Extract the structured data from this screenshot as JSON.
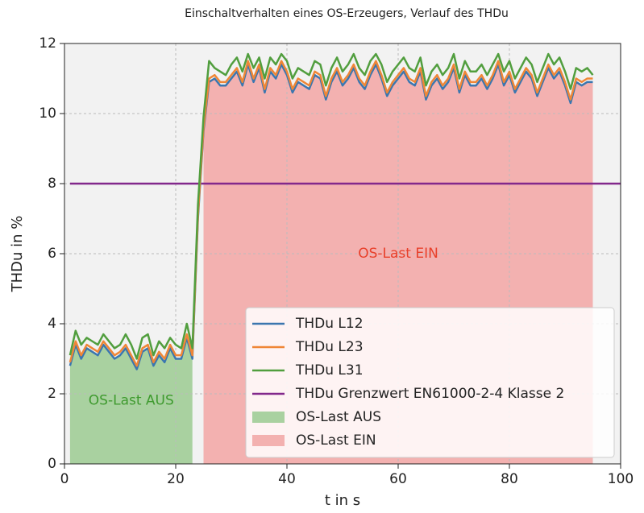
{
  "chart_data": {
    "type": "line",
    "title": "Einschaltverhalten eines OS-Erzeugers, Verlauf des THDu",
    "x_label": "t in s",
    "y_label": "THDu in %",
    "xlim": [
      0,
      100
    ],
    "ylim": [
      0,
      12
    ],
    "xticks": [
      0,
      20,
      40,
      60,
      80,
      100
    ],
    "yticks": [
      0,
      2,
      4,
      6,
      8,
      10,
      12
    ],
    "grid": true,
    "legend": "lower right",
    "x": [
      1,
      2,
      3,
      4,
      5,
      6,
      7,
      8,
      9,
      10,
      11,
      12,
      13,
      14,
      15,
      16,
      17,
      18,
      19,
      20,
      21,
      22,
      23,
      24,
      25,
      26,
      27,
      28,
      29,
      30,
      31,
      32,
      33,
      34,
      35,
      36,
      37,
      38,
      39,
      40,
      41,
      42,
      43,
      44,
      45,
      46,
      47,
      48,
      49,
      50,
      51,
      52,
      53,
      54,
      55,
      56,
      57,
      58,
      59,
      60,
      61,
      62,
      63,
      64,
      65,
      66,
      67,
      68,
      69,
      70,
      71,
      72,
      73,
      74,
      75,
      76,
      77,
      78,
      79,
      80,
      81,
      82,
      83,
      84,
      85,
      86,
      87,
      88,
      89,
      90,
      91,
      92,
      93,
      94,
      95
    ],
    "series": [
      {
        "name": "THDu L12",
        "color": "#3b76af",
        "values": [
          2.8,
          3.4,
          3.0,
          3.3,
          3.2,
          3.1,
          3.4,
          3.2,
          3.0,
          3.1,
          3.3,
          3.0,
          2.7,
          3.2,
          3.3,
          2.8,
          3.1,
          2.9,
          3.3,
          3.0,
          3.0,
          3.6,
          3.0,
          7.0,
          9.5,
          10.9,
          11.0,
          10.8,
          10.8,
          11.0,
          11.2,
          10.8,
          11.4,
          10.9,
          11.3,
          10.6,
          11.2,
          11.0,
          11.4,
          11.1,
          10.6,
          10.9,
          10.8,
          10.7,
          11.1,
          11.0,
          10.4,
          10.9,
          11.2,
          10.8,
          11.0,
          11.3,
          10.9,
          10.7,
          11.1,
          11.4,
          11.0,
          10.5,
          10.8,
          11.0,
          11.2,
          10.9,
          10.8,
          11.2,
          10.4,
          10.8,
          11.0,
          10.7,
          10.9,
          11.3,
          10.6,
          11.1,
          10.8,
          10.8,
          11.0,
          10.7,
          11.0,
          11.4,
          10.8,
          11.1,
          10.6,
          10.9,
          11.2,
          11.0,
          10.5,
          10.9,
          11.3,
          11.0,
          11.2,
          10.8,
          10.3,
          10.9,
          10.8,
          10.9,
          10.9
        ]
      },
      {
        "name": "THDu L23",
        "color": "#ef8636",
        "values": [
          2.9,
          3.5,
          3.1,
          3.4,
          3.3,
          3.2,
          3.5,
          3.3,
          3.1,
          3.2,
          3.4,
          3.1,
          2.8,
          3.3,
          3.4,
          2.9,
          3.2,
          3.0,
          3.4,
          3.1,
          3.1,
          3.7,
          3.1,
          7.1,
          9.6,
          11.0,
          11.1,
          10.9,
          10.9,
          11.1,
          11.3,
          10.9,
          11.5,
          11.0,
          11.4,
          10.7,
          11.3,
          11.1,
          11.5,
          11.2,
          10.7,
          11.0,
          10.9,
          10.8,
          11.2,
          11.1,
          10.5,
          11.0,
          11.3,
          10.9,
          11.1,
          11.4,
          11.0,
          10.8,
          11.2,
          11.5,
          11.1,
          10.6,
          10.9,
          11.1,
          11.3,
          11.0,
          10.9,
          11.3,
          10.5,
          10.9,
          11.1,
          10.8,
          11.0,
          11.4,
          10.7,
          11.2,
          10.9,
          10.9,
          11.1,
          10.8,
          11.1,
          11.5,
          10.9,
          11.2,
          10.7,
          11.0,
          11.3,
          11.1,
          10.6,
          11.0,
          11.4,
          11.1,
          11.3,
          10.9,
          10.4,
          11.0,
          10.9,
          11.0,
          11.0
        ]
      },
      {
        "name": "THDu L31",
        "color": "#519e3e",
        "values": [
          3.1,
          3.8,
          3.4,
          3.6,
          3.5,
          3.4,
          3.7,
          3.5,
          3.3,
          3.4,
          3.7,
          3.4,
          3.0,
          3.6,
          3.7,
          3.1,
          3.5,
          3.3,
          3.6,
          3.4,
          3.3,
          4.0,
          3.3,
          7.4,
          9.9,
          11.5,
          11.3,
          11.2,
          11.1,
          11.4,
          11.6,
          11.2,
          11.7,
          11.3,
          11.6,
          11.0,
          11.6,
          11.4,
          11.7,
          11.5,
          11.0,
          11.3,
          11.2,
          11.1,
          11.5,
          11.4,
          10.8,
          11.3,
          11.6,
          11.2,
          11.4,
          11.7,
          11.3,
          11.1,
          11.5,
          11.7,
          11.4,
          10.9,
          11.2,
          11.4,
          11.6,
          11.3,
          11.2,
          11.6,
          10.8,
          11.2,
          11.4,
          11.1,
          11.3,
          11.7,
          11.0,
          11.5,
          11.2,
          11.2,
          11.4,
          11.1,
          11.4,
          11.7,
          11.2,
          11.5,
          11.0,
          11.3,
          11.6,
          11.4,
          10.9,
          11.3,
          11.7,
          11.4,
          11.6,
          11.2,
          10.7,
          11.3,
          11.2,
          11.3,
          11.1
        ]
      }
    ],
    "threshold": {
      "name": "THDu Grenzwert EN61000-2-4 Klasse 2",
      "color": "#82288c",
      "value": 8
    },
    "areas": [
      {
        "name": "OS-Last AUS",
        "color": "#a9d1a0",
        "x_from": 1,
        "x_to": 23
      },
      {
        "name": "OS-Last EIN",
        "color": "#f3b1b0",
        "x_from": 25,
        "x_to": 95
      }
    ],
    "annotations": [
      {
        "text": "OS-Last AUS",
        "x": 12,
        "y": 1.8,
        "color": "#3f9a2f"
      },
      {
        "text": "OS-Last EIN",
        "x": 60,
        "y": 6,
        "color": "#e8402a"
      }
    ]
  }
}
